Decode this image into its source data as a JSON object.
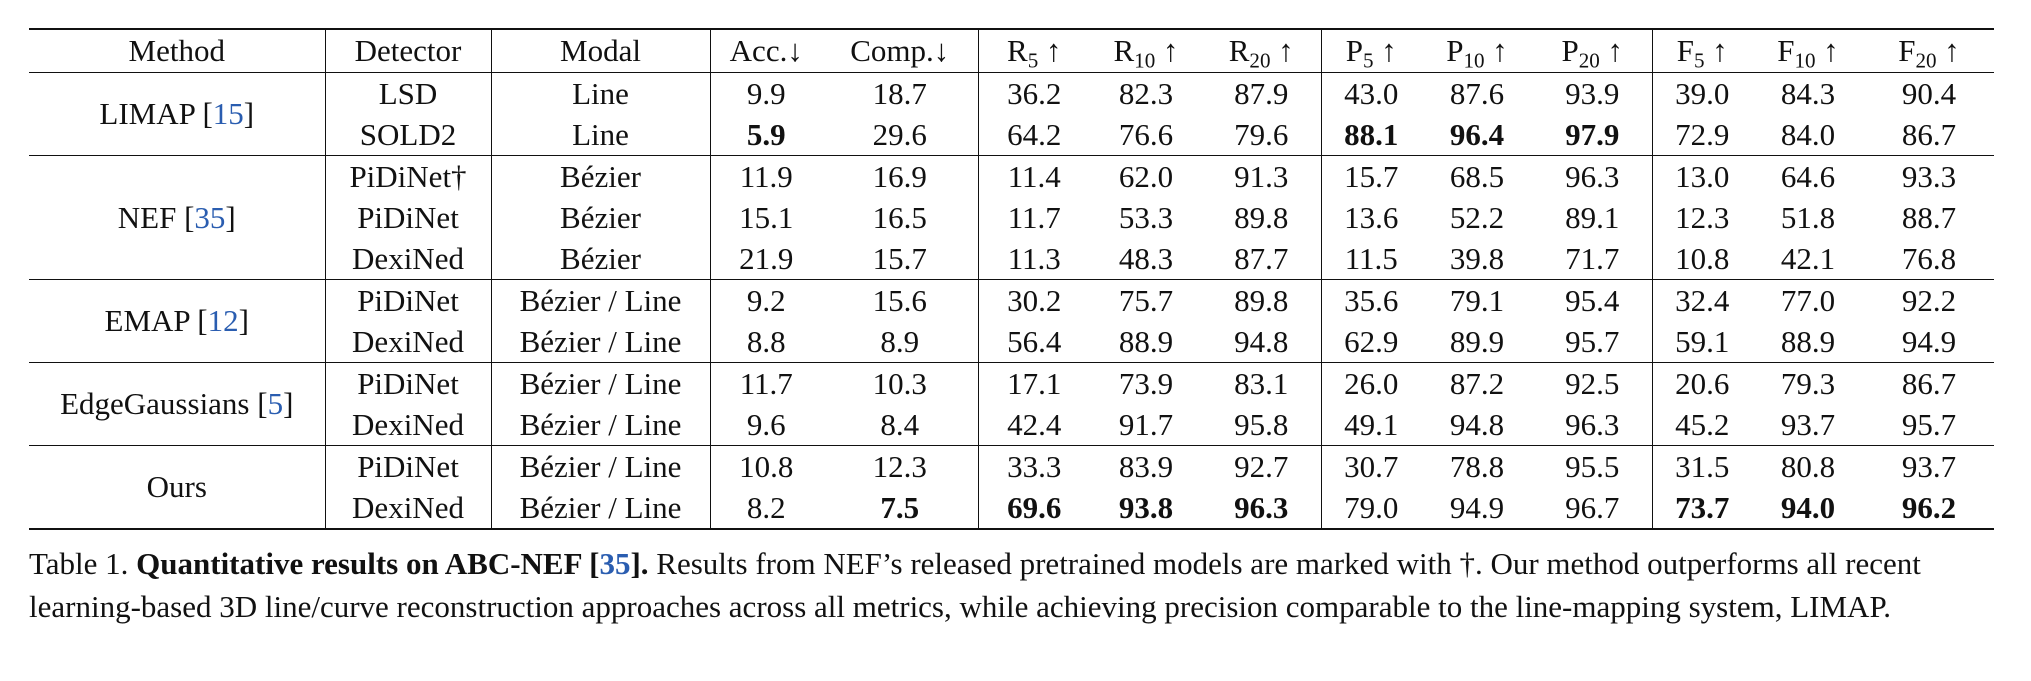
{
  "table": {
    "headers": {
      "method": "Method",
      "detector": "Detector",
      "modal": "Modal",
      "acc": "Acc.↓",
      "comp": "Comp.↓",
      "metrics": [
        {
          "letter": "R",
          "sub": "5",
          "arrow": " ↑"
        },
        {
          "letter": "R",
          "sub": "10",
          "arrow": " ↑"
        },
        {
          "letter": "R",
          "sub": "20",
          "arrow": " ↑"
        },
        {
          "letter": "P",
          "sub": "5",
          "arrow": " ↑"
        },
        {
          "letter": "P",
          "sub": "10",
          "arrow": " ↑"
        },
        {
          "letter": "P",
          "sub": "20",
          "arrow": " ↑"
        },
        {
          "letter": "F",
          "sub": "5",
          "arrow": " ↑"
        },
        {
          "letter": "F",
          "sub": "10",
          "arrow": " ↑"
        },
        {
          "letter": "F",
          "sub": "20",
          "arrow": " ↑"
        }
      ]
    },
    "groups": [
      {
        "method": "LIMAP [",
        "cite": "15",
        "close": "]",
        "rows": [
          {
            "detector": "LSD",
            "modal": "Line",
            "values": [
              "9.9",
              "18.7",
              "36.2",
              "82.3",
              "87.9",
              "43.0",
              "87.6",
              "93.9",
              "39.0",
              "84.3",
              "90.4"
            ],
            "bold": []
          },
          {
            "detector": "SOLD2",
            "modal": "Line",
            "values": [
              "5.9",
              "29.6",
              "64.2",
              "76.6",
              "79.6",
              "88.1",
              "96.4",
              "97.9",
              "72.9",
              "84.0",
              "86.7"
            ],
            "bold": [
              0,
              5,
              6,
              7
            ]
          }
        ]
      },
      {
        "method": "NEF [",
        "cite": "35",
        "close": "]",
        "rows": [
          {
            "detector": "PiDiNet†",
            "modal": "Bézier",
            "values": [
              "11.9",
              "16.9",
              "11.4",
              "62.0",
              "91.3",
              "15.7",
              "68.5",
              "96.3",
              "13.0",
              "64.6",
              "93.3"
            ],
            "bold": []
          },
          {
            "detector": "PiDiNet",
            "modal": "Bézier",
            "values": [
              "15.1",
              "16.5",
              "11.7",
              "53.3",
              "89.8",
              "13.6",
              "52.2",
              "89.1",
              "12.3",
              "51.8",
              "88.7"
            ],
            "bold": []
          },
          {
            "detector": "DexiNed",
            "modal": "Bézier",
            "values": [
              "21.9",
              "15.7",
              "11.3",
              "48.3",
              "87.7",
              "11.5",
              "39.8",
              "71.7",
              "10.8",
              "42.1",
              "76.8"
            ],
            "bold": []
          }
        ]
      },
      {
        "method": "EMAP [",
        "cite": "12",
        "close": "]",
        "rows": [
          {
            "detector": "PiDiNet",
            "modal": "Bézier / Line",
            "values": [
              "9.2",
              "15.6",
              "30.2",
              "75.7",
              "89.8",
              "35.6",
              "79.1",
              "95.4",
              "32.4",
              "77.0",
              "92.2"
            ],
            "bold": []
          },
          {
            "detector": "DexiNed",
            "modal": "Bézier / Line",
            "values": [
              "8.8",
              "8.9",
              "56.4",
              "88.9",
              "94.8",
              "62.9",
              "89.9",
              "95.7",
              "59.1",
              "88.9",
              "94.9"
            ],
            "bold": []
          }
        ]
      },
      {
        "method": "EdgeGaussians [",
        "cite": "5",
        "close": "]",
        "rows": [
          {
            "detector": "PiDiNet",
            "modal": "Bézier / Line",
            "values": [
              "11.7",
              "10.3",
              "17.1",
              "73.9",
              "83.1",
              "26.0",
              "87.2",
              "92.5",
              "20.6",
              "79.3",
              "86.7"
            ],
            "bold": []
          },
          {
            "detector": "DexiNed",
            "modal": "Bézier / Line",
            "values": [
              "9.6",
              "8.4",
              "42.4",
              "91.7",
              "95.8",
              "49.1",
              "94.8",
              "96.3",
              "45.2",
              "93.7",
              "95.7"
            ],
            "bold": []
          }
        ]
      },
      {
        "method": "Ours",
        "cite": "",
        "close": "",
        "rows": [
          {
            "detector": "PiDiNet",
            "modal": "Bézier / Line",
            "values": [
              "10.8",
              "12.3",
              "33.3",
              "83.9",
              "92.7",
              "30.7",
              "78.8",
              "95.5",
              "31.5",
              "80.8",
              "93.7"
            ],
            "bold": []
          },
          {
            "detector": "DexiNed",
            "modal": "Bézier / Line",
            "values": [
              "8.2",
              "7.5",
              "69.6",
              "93.8",
              "96.3",
              "79.0",
              "94.9",
              "96.7",
              "73.7",
              "94.0",
              "96.2"
            ],
            "bold": [
              1,
              2,
              3,
              4,
              8,
              9,
              10
            ]
          }
        ]
      }
    ]
  },
  "caption": {
    "label": "Table 1.  ",
    "title_pre": "Quantitative results on ABC-NEF [",
    "title_cite": "35",
    "title_post": "].",
    "body": "  Results from NEF’s released pretrained models are marked with †.  Our method outperforms all recent learning-based 3D line/curve reconstruction approaches across all metrics, while achieving precision comparable to the line-mapping system, LIMAP."
  },
  "colors": {
    "citation": "#2a5db0",
    "text": "#111111"
  }
}
